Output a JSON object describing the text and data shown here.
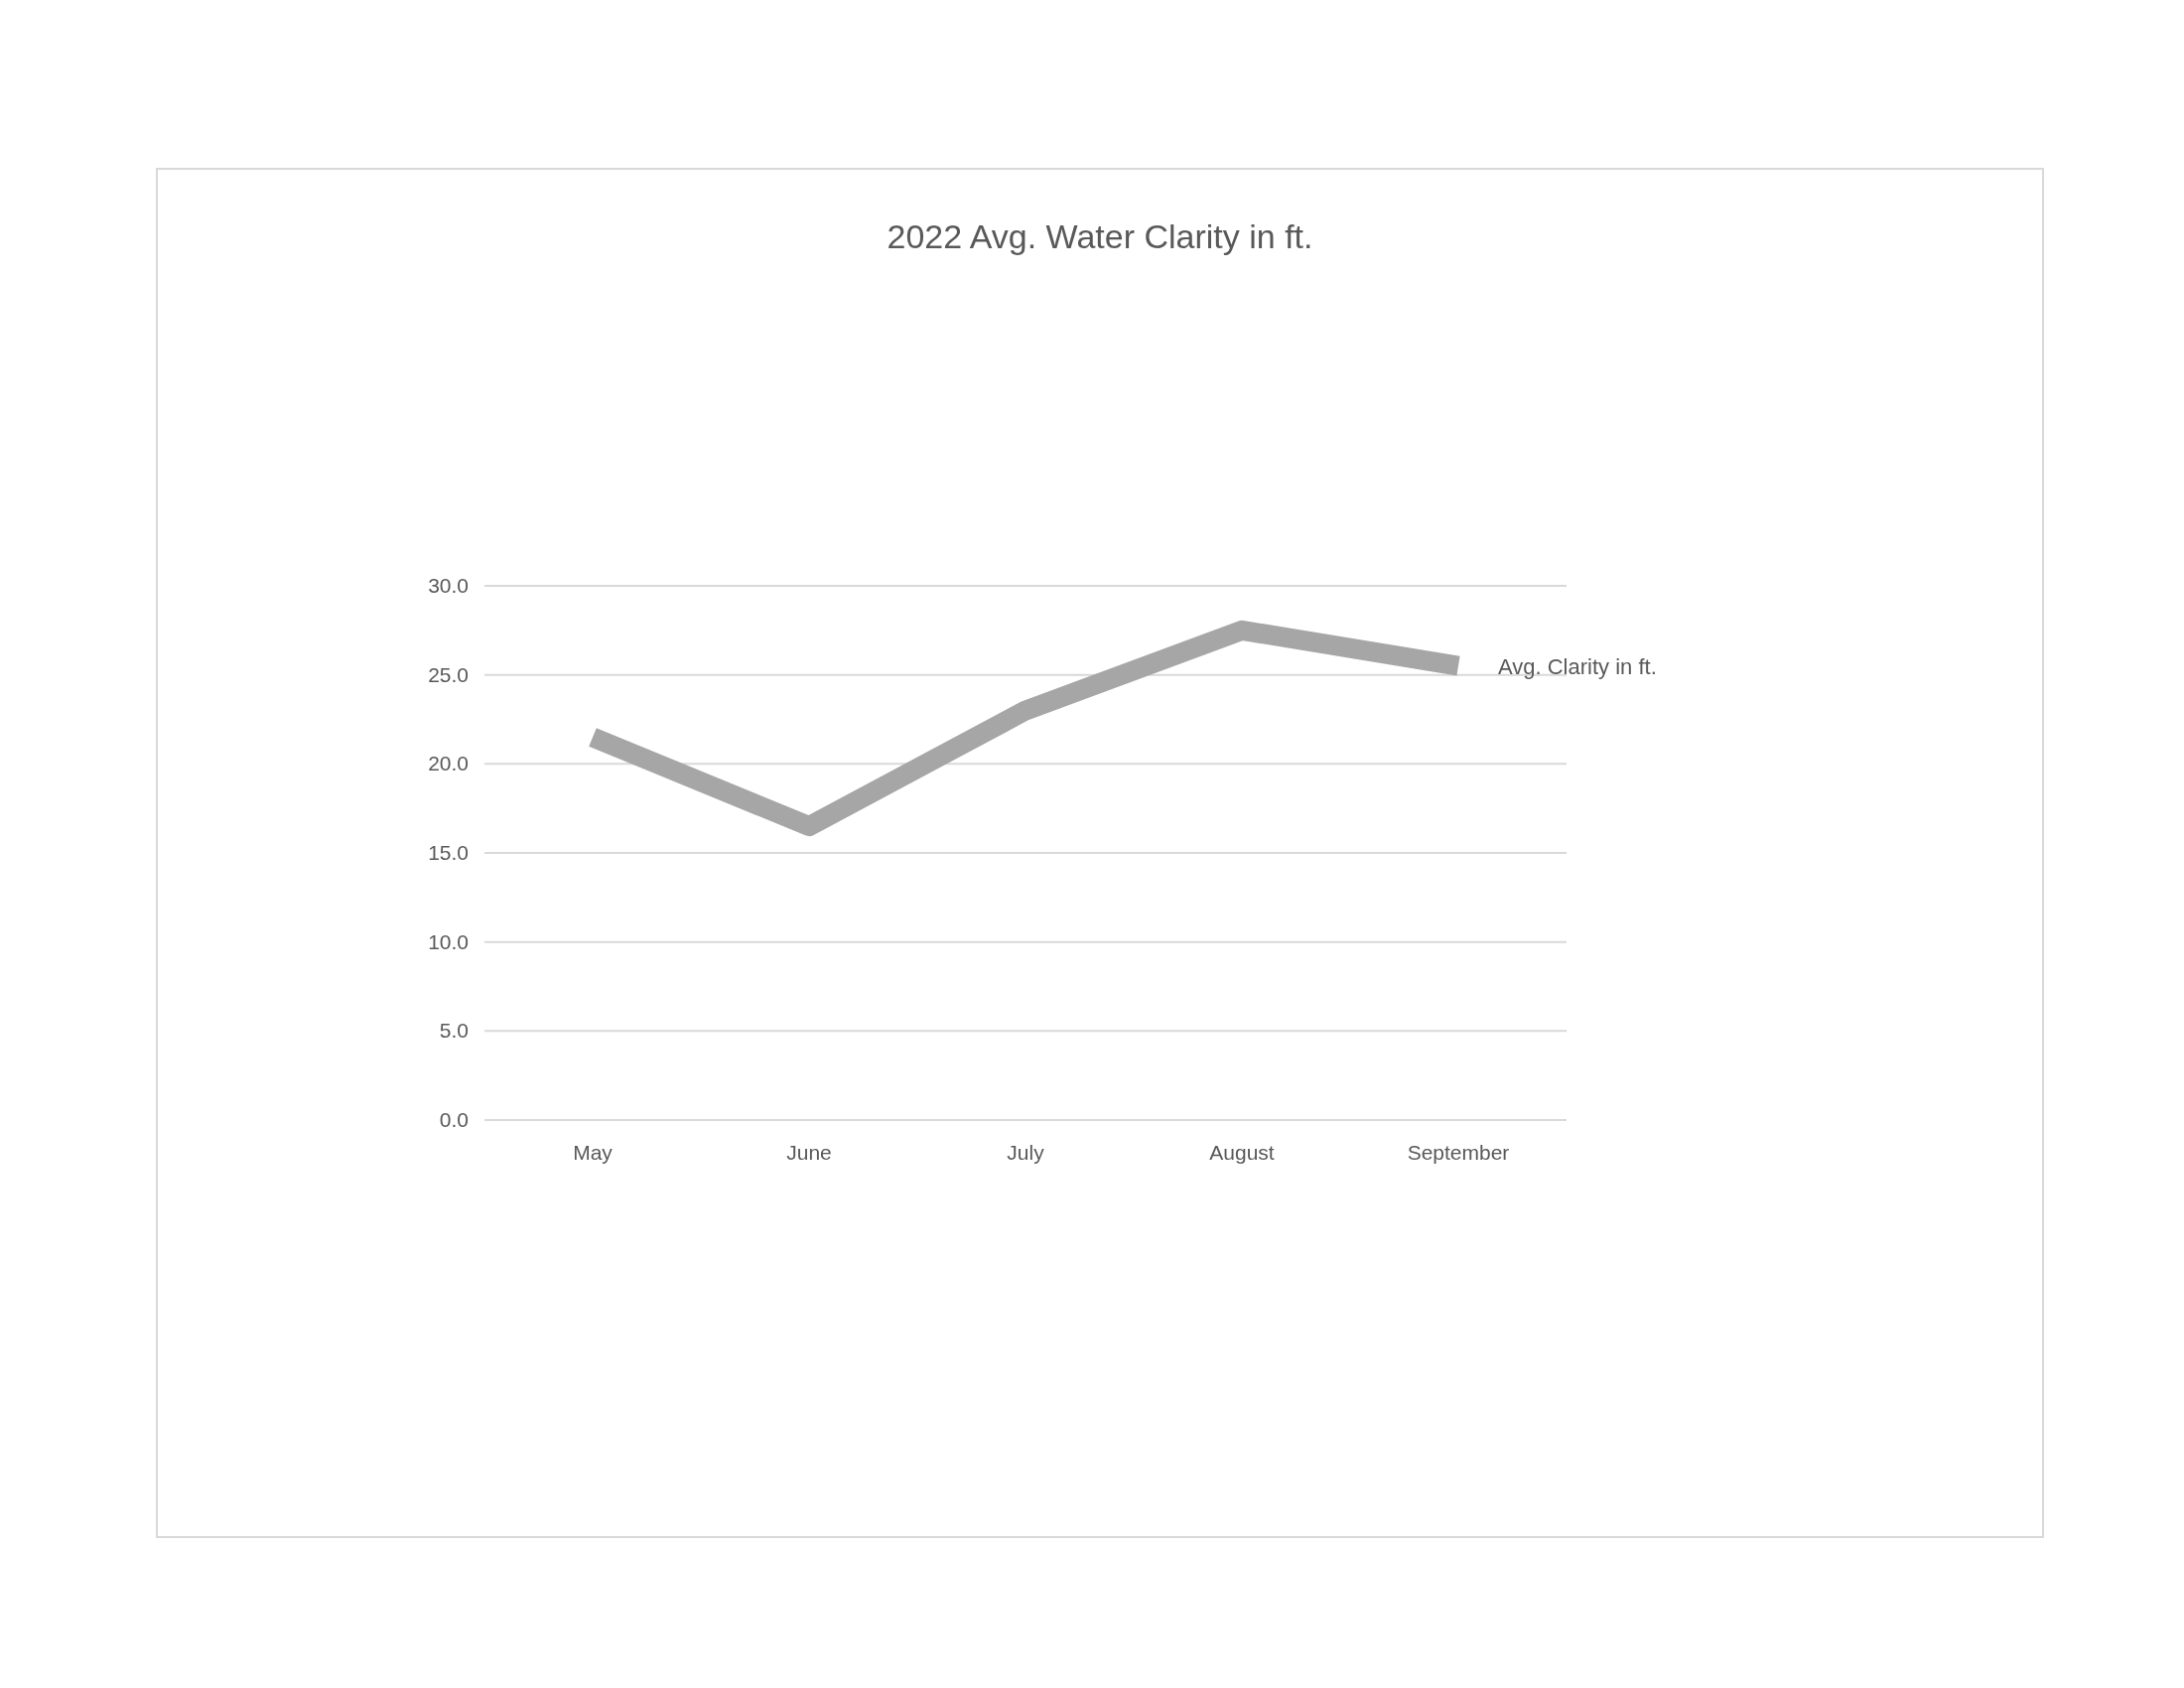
{
  "chart_data": {
    "type": "line",
    "title": "2022 Avg. Water Clarity in ft.",
    "categories": [
      "May",
      "June",
      "July",
      "August",
      "September"
    ],
    "series": [
      {
        "name": "Avg. Clarity in ft.",
        "color": "#a6a6a6",
        "values": [
          21.5,
          16.5,
          23,
          27.5,
          25.5
        ]
      }
    ],
    "ylim": [
      0,
      30
    ],
    "yticks": [
      {
        "value": 0,
        "label": "0.0"
      },
      {
        "value": 5,
        "label": "5.0"
      },
      {
        "value": 10,
        "label": "10.0"
      },
      {
        "value": 15,
        "label": "15.0"
      },
      {
        "value": 20,
        "label": "20.0"
      },
      {
        "value": 25,
        "label": "25.0"
      },
      {
        "value": 30,
        "label": "30.0"
      }
    ],
    "grid": "y"
  }
}
